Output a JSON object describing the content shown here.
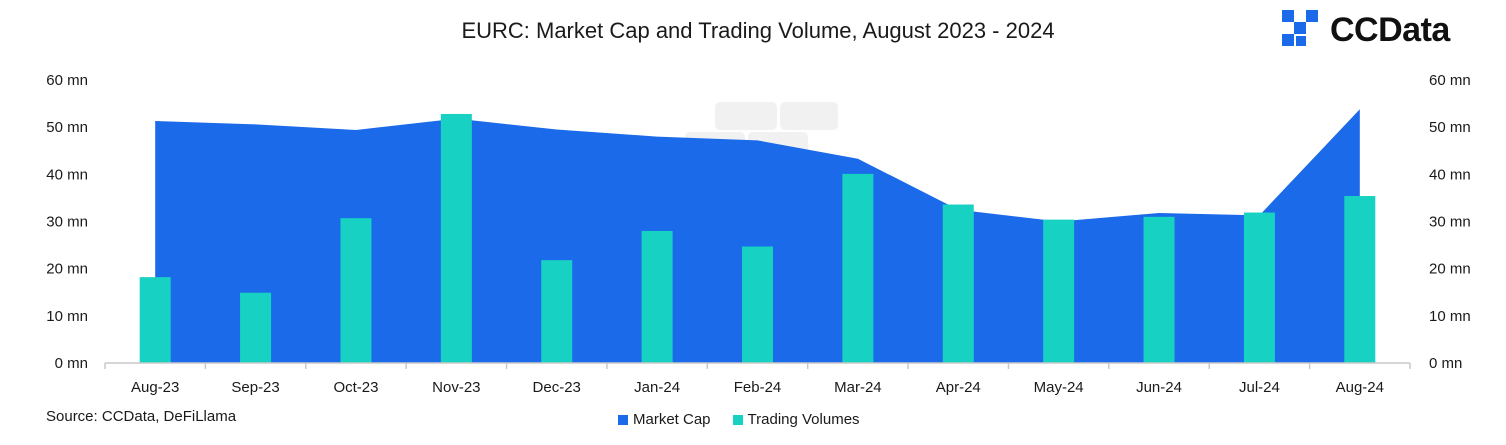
{
  "title": "EURC: Market Cap and Trading Volume, August 2023 - 2024",
  "logo": {
    "text": "CCData",
    "icon": "ccdata-logo-icon"
  },
  "source": "Source: CCData, DeFiLlama",
  "colors": {
    "market_cap": "#1b6ae9",
    "trading_volumes": "#17d2c2",
    "axis": "#c8c8c8"
  },
  "chart_data": {
    "type": "bar+area",
    "title": "EURC: Market Cap and Trading Volume, August 2023 - 2024",
    "categories": [
      "Aug-23",
      "Sep-23",
      "Oct-23",
      "Nov-23",
      "Dec-23",
      "Jan-24",
      "Feb-24",
      "Mar-24",
      "Apr-24",
      "May-24",
      "Jun-24",
      "Jul-24",
      "Aug-24"
    ],
    "y_ticks": [
      "0 mn",
      "10 mn",
      "20 mn",
      "30 mn",
      "40 mn",
      "50 mn",
      "60 mn"
    ],
    "ylim": [
      0,
      60
    ],
    "unit": "mn",
    "legend_position": "bottom",
    "grid": false,
    "series": [
      {
        "name": "Market Cap",
        "type": "area",
        "values": [
          51.3,
          50.6,
          49.4,
          51.8,
          49.5,
          48.0,
          47.2,
          43.3,
          32.5,
          30.0,
          31.8,
          31.3,
          53.8
        ]
      },
      {
        "name": "Trading Volumes",
        "type": "bar",
        "values": [
          18.2,
          14.9,
          30.7,
          52.8,
          21.8,
          28.0,
          24.7,
          40.1,
          33.6,
          30.4,
          31.0,
          31.9,
          35.4
        ]
      }
    ]
  }
}
